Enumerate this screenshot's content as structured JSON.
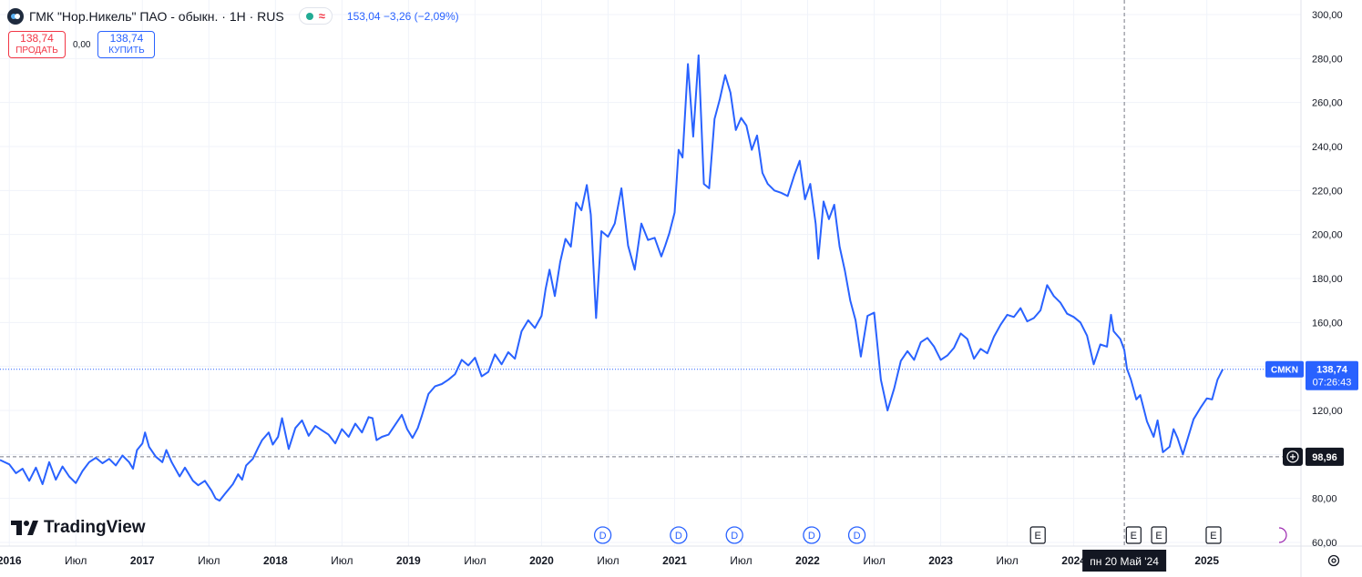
{
  "header": {
    "symbol_title": "ГМК \"Нор.Никель\" ПАО - обыкн. · 1Н · RUS",
    "status_approx": "≈",
    "price_info": "153,04 −3,26 (−2,09%)"
  },
  "trade": {
    "sell_price": "138,74",
    "sell_label": "ПРОДАТЬ",
    "spread": "0,00",
    "buy_price": "138,74",
    "buy_label": "КУПИТЬ"
  },
  "branding": {
    "name": "TradingView"
  },
  "colors": {
    "line": "#2962ff",
    "event_circle": "#2962ff",
    "earnings_box": "#131722",
    "dark_label": "#131722",
    "sell": "#f23645",
    "buy": "#2962ff"
  },
  "chart_data": {
    "type": "line",
    "ylim": [
      60,
      300
    ],
    "y_ticks": [
      300,
      280,
      260,
      240,
      220,
      200,
      180,
      160,
      140,
      120,
      100,
      80,
      60
    ],
    "y_tick_labels": [
      "300,00",
      "280,00",
      "260,00",
      "240,00",
      "220,00",
      "200,00",
      "180,00",
      "160,00",
      "140,00",
      "120,00",
      "100,00",
      "80,00",
      "60,00"
    ],
    "x_range": [
      2015.93,
      2025.55
    ],
    "x_ticks": [
      {
        "x": 2016.0,
        "label": "2016",
        "bold": true
      },
      {
        "x": 2016.5,
        "label": "Июл",
        "bold": false
      },
      {
        "x": 2017.0,
        "label": "2017",
        "bold": true
      },
      {
        "x": 2017.5,
        "label": "Июл",
        "bold": false
      },
      {
        "x": 2018.0,
        "label": "2018",
        "bold": true
      },
      {
        "x": 2018.5,
        "label": "Июл",
        "bold": false
      },
      {
        "x": 2019.0,
        "label": "2019",
        "bold": true
      },
      {
        "x": 2019.5,
        "label": "Июл",
        "bold": false
      },
      {
        "x": 2020.0,
        "label": "2020",
        "bold": true
      },
      {
        "x": 2020.5,
        "label": "Июл",
        "bold": false
      },
      {
        "x": 2021.0,
        "label": "2021",
        "bold": true
      },
      {
        "x": 2021.5,
        "label": "Июл",
        "bold": false
      },
      {
        "x": 2022.0,
        "label": "2022",
        "bold": true
      },
      {
        "x": 2022.5,
        "label": "Июл",
        "bold": false
      },
      {
        "x": 2023.0,
        "label": "2023",
        "bold": true
      },
      {
        "x": 2023.5,
        "label": "Июл",
        "bold": false
      },
      {
        "x": 2024.0,
        "label": "2024",
        "bold": true
      },
      {
        "x": 2025.0,
        "label": "2025",
        "bold": true
      }
    ],
    "series": [
      {
        "values": [
          [
            2015.93,
            97.5
          ],
          [
            2016.0,
            95.5
          ],
          [
            2016.05,
            91.5
          ],
          [
            2016.1,
            93.5
          ],
          [
            2016.15,
            88.0
          ],
          [
            2016.2,
            94.0
          ],
          [
            2016.25,
            86.5
          ],
          [
            2016.3,
            96.5
          ],
          [
            2016.35,
            88.5
          ],
          [
            2016.4,
            94.5
          ],
          [
            2016.45,
            90.0
          ],
          [
            2016.5,
            87.0
          ],
          [
            2016.55,
            92.5
          ],
          [
            2016.6,
            96.5
          ],
          [
            2016.65,
            98.5
          ],
          [
            2016.7,
            96.0
          ],
          [
            2016.75,
            98.0
          ],
          [
            2016.8,
            95.0
          ],
          [
            2016.85,
            99.5
          ],
          [
            2016.9,
            96.5
          ],
          [
            2016.93,
            93.5
          ],
          [
            2016.96,
            102.0
          ],
          [
            2017.0,
            105.0
          ],
          [
            2017.02,
            110.0
          ],
          [
            2017.05,
            103.5
          ],
          [
            2017.1,
            99.0
          ],
          [
            2017.15,
            96.5
          ],
          [
            2017.18,
            102.0
          ],
          [
            2017.22,
            96.5
          ],
          [
            2017.28,
            90.0
          ],
          [
            2017.32,
            94.0
          ],
          [
            2017.38,
            88.0
          ],
          [
            2017.42,
            86.0
          ],
          [
            2017.47,
            88.0
          ],
          [
            2017.52,
            83.5
          ],
          [
            2017.55,
            80.0
          ],
          [
            2017.58,
            79.0
          ],
          [
            2017.62,
            82.0
          ],
          [
            2017.68,
            86.5
          ],
          [
            2017.72,
            91.0
          ],
          [
            2017.75,
            88.5
          ],
          [
            2017.78,
            95.0
          ],
          [
            2017.83,
            98.0
          ],
          [
            2017.87,
            103.0
          ],
          [
            2017.9,
            106.5
          ],
          [
            2017.95,
            110.0
          ],
          [
            2017.98,
            104.5
          ],
          [
            2018.02,
            108.0
          ],
          [
            2018.05,
            116.5
          ],
          [
            2018.1,
            102.5
          ],
          [
            2018.15,
            112.0
          ],
          [
            2018.2,
            115.5
          ],
          [
            2018.25,
            108.5
          ],
          [
            2018.3,
            113.0
          ],
          [
            2018.35,
            111.0
          ],
          [
            2018.4,
            109.0
          ],
          [
            2018.45,
            105.0
          ],
          [
            2018.5,
            111.5
          ],
          [
            2018.55,
            108.0
          ],
          [
            2018.6,
            114.0
          ],
          [
            2018.65,
            110.0
          ],
          [
            2018.7,
            117.0
          ],
          [
            2018.73,
            116.5
          ],
          [
            2018.76,
            106.5
          ],
          [
            2018.8,
            108.0
          ],
          [
            2018.85,
            109.0
          ],
          [
            2018.9,
            113.5
          ],
          [
            2018.95,
            118.0
          ],
          [
            2018.99,
            111.5
          ],
          [
            2019.03,
            107.5
          ],
          [
            2019.07,
            112.0
          ],
          [
            2019.1,
            117.5
          ],
          [
            2019.15,
            127.5
          ],
          [
            2019.2,
            131.0
          ],
          [
            2019.25,
            132.0
          ],
          [
            2019.3,
            134.0
          ],
          [
            2019.35,
            136.5
          ],
          [
            2019.4,
            143.0
          ],
          [
            2019.45,
            140.5
          ],
          [
            2019.5,
            144.0
          ],
          [
            2019.55,
            135.5
          ],
          [
            2019.6,
            137.5
          ],
          [
            2019.65,
            145.5
          ],
          [
            2019.7,
            141.0
          ],
          [
            2019.75,
            146.5
          ],
          [
            2019.8,
            143.5
          ],
          [
            2019.85,
            156.0
          ],
          [
            2019.9,
            161.0
          ],
          [
            2019.95,
            157.5
          ],
          [
            2020.0,
            163.0
          ],
          [
            2020.03,
            175.0
          ],
          [
            2020.06,
            184.0
          ],
          [
            2020.1,
            172.0
          ],
          [
            2020.14,
            187.5
          ],
          [
            2020.18,
            198.0
          ],
          [
            2020.22,
            194.5
          ],
          [
            2020.26,
            214.5
          ],
          [
            2020.3,
            211.0
          ],
          [
            2020.34,
            222.5
          ],
          [
            2020.37,
            209.0
          ],
          [
            2020.41,
            162.0
          ],
          [
            2020.45,
            201.5
          ],
          [
            2020.5,
            199.0
          ],
          [
            2020.55,
            205.0
          ],
          [
            2020.6,
            221.0
          ],
          [
            2020.65,
            195.0
          ],
          [
            2020.7,
            184.0
          ],
          [
            2020.75,
            205.0
          ],
          [
            2020.8,
            197.5
          ],
          [
            2020.85,
            198.5
          ],
          [
            2020.9,
            190.0
          ],
          [
            2020.93,
            195.0
          ],
          [
            2020.96,
            200.5
          ],
          [
            2021.0,
            210.0
          ],
          [
            2021.03,
            238.5
          ],
          [
            2021.06,
            235.0
          ],
          [
            2021.1,
            277.5
          ],
          [
            2021.14,
            244.5
          ],
          [
            2021.18,
            281.5
          ],
          [
            2021.22,
            223.0
          ],
          [
            2021.26,
            221.0
          ],
          [
            2021.3,
            252.5
          ],
          [
            2021.34,
            261.5
          ],
          [
            2021.38,
            272.5
          ],
          [
            2021.42,
            264.5
          ],
          [
            2021.46,
            247.5
          ],
          [
            2021.5,
            253.0
          ],
          [
            2021.54,
            249.5
          ],
          [
            2021.58,
            238.5
          ],
          [
            2021.62,
            245.0
          ],
          [
            2021.66,
            228.0
          ],
          [
            2021.7,
            223.0
          ],
          [
            2021.75,
            220.0
          ],
          [
            2021.8,
            219.0
          ],
          [
            2021.85,
            217.5
          ],
          [
            2021.9,
            227.0
          ],
          [
            2021.94,
            233.5
          ],
          [
            2021.98,
            216.0
          ],
          [
            2022.02,
            223.0
          ],
          [
            2022.06,
            205.0
          ],
          [
            2022.08,
            189.0
          ],
          [
            2022.12,
            215.0
          ],
          [
            2022.16,
            207.0
          ],
          [
            2022.2,
            213.5
          ],
          [
            2022.24,
            194.5
          ],
          [
            2022.28,
            183.5
          ],
          [
            2022.32,
            170.0
          ],
          [
            2022.36,
            161.0
          ],
          [
            2022.4,
            144.5
          ],
          [
            2022.45,
            163.0
          ],
          [
            2022.5,
            164.5
          ],
          [
            2022.55,
            134.0
          ],
          [
            2022.6,
            120.0
          ],
          [
            2022.65,
            130.0
          ],
          [
            2022.7,
            142.5
          ],
          [
            2022.75,
            147.0
          ],
          [
            2022.8,
            143.0
          ],
          [
            2022.85,
            151.0
          ],
          [
            2022.9,
            153.0
          ],
          [
            2022.95,
            149.0
          ],
          [
            2023.0,
            143.0
          ],
          [
            2023.05,
            145.0
          ],
          [
            2023.1,
            148.5
          ],
          [
            2023.15,
            155.0
          ],
          [
            2023.2,
            152.5
          ],
          [
            2023.25,
            143.5
          ],
          [
            2023.3,
            148.0
          ],
          [
            2023.35,
            146.0
          ],
          [
            2023.4,
            153.5
          ],
          [
            2023.45,
            159.0
          ],
          [
            2023.5,
            163.5
          ],
          [
            2023.55,
            162.5
          ],
          [
            2023.6,
            166.5
          ],
          [
            2023.65,
            160.5
          ],
          [
            2023.7,
            162.0
          ],
          [
            2023.75,
            165.5
          ],
          [
            2023.8,
            177.0
          ],
          [
            2023.85,
            172.0
          ],
          [
            2023.9,
            169.0
          ],
          [
            2023.95,
            164.0
          ],
          [
            2024.0,
            162.5
          ],
          [
            2024.05,
            160.0
          ],
          [
            2024.1,
            154.0
          ],
          [
            2024.15,
            141.0
          ],
          [
            2024.2,
            150.0
          ],
          [
            2024.25,
            149.0
          ],
          [
            2024.28,
            163.5
          ],
          [
            2024.3,
            156.0
          ],
          [
            2024.35,
            152.5
          ],
          [
            2024.38,
            147.5
          ],
          [
            2024.4,
            139.0
          ],
          [
            2024.43,
            134.0
          ],
          [
            2024.47,
            125.0
          ],
          [
            2024.5,
            127.0
          ],
          [
            2024.55,
            115.0
          ],
          [
            2024.6,
            108.0
          ],
          [
            2024.63,
            115.5
          ],
          [
            2024.67,
            101.0
          ],
          [
            2024.72,
            103.5
          ],
          [
            2024.75,
            111.5
          ],
          [
            2024.78,
            107.5
          ],
          [
            2024.82,
            100.0
          ],
          [
            2024.85,
            106.0
          ],
          [
            2024.9,
            116.0
          ],
          [
            2024.95,
            121.0
          ],
          [
            2025.0,
            125.5
          ],
          [
            2025.04,
            125.0
          ],
          [
            2025.08,
            134.0
          ],
          [
            2025.12,
            138.74
          ]
        ]
      }
    ],
    "reference_lines": [
      {
        "value": 138.74,
        "label": "CMKN",
        "value_label": "138,74",
        "countdown": "07:26:43",
        "style": "dotted"
      },
      {
        "value": 98.96,
        "value_label": "98,96",
        "style": "dashed"
      }
    ],
    "crosshair": {
      "x": 2024.38,
      "label": "пн 20 Май '24"
    },
    "events": [
      {
        "x": 2020.46,
        "label": "D",
        "kind": "dividend"
      },
      {
        "x": 2021.03,
        "label": "D",
        "kind": "dividend"
      },
      {
        "x": 2021.45,
        "label": "D",
        "kind": "dividend"
      },
      {
        "x": 2022.03,
        "label": "D",
        "kind": "dividend"
      },
      {
        "x": 2022.37,
        "label": "D",
        "kind": "dividend"
      },
      {
        "x": 2023.73,
        "label": "E",
        "kind": "earnings"
      },
      {
        "x": 2024.45,
        "label": "E",
        "kind": "earnings"
      },
      {
        "x": 2024.64,
        "label": "E",
        "kind": "earnings"
      },
      {
        "x": 2025.05,
        "label": "E",
        "kind": "earnings"
      }
    ]
  }
}
